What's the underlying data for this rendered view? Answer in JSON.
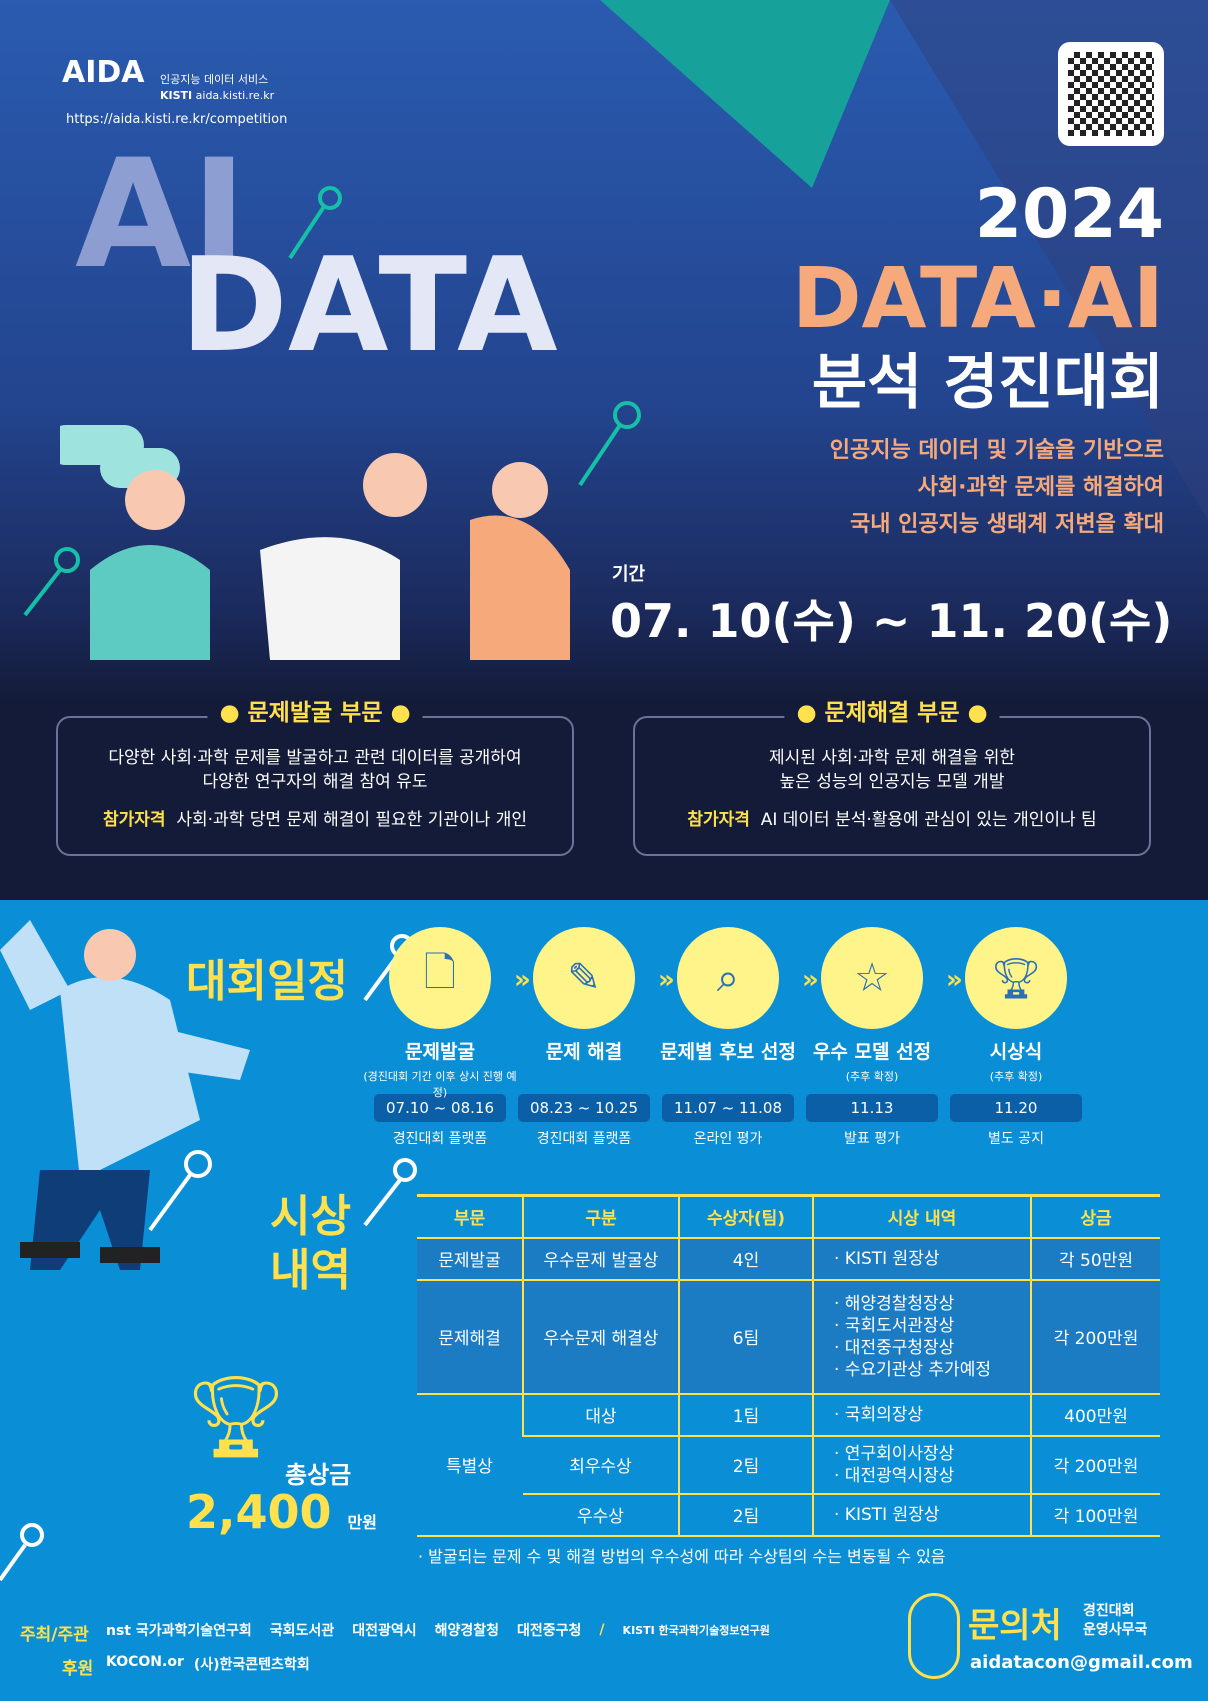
{
  "header": {
    "logo_text": "AIDA",
    "service": "인공지능 데이터 서비스",
    "kisti": "KISTI",
    "site": "aida.kisti.re.kr",
    "url": "https://aida.kisti.re.kr/competition",
    "qr_icon": "qr-code"
  },
  "hero": {
    "deco_ai": "AI",
    "deco_data": "DATA",
    "year": "2024",
    "title1": "DATA·AI",
    "title2": "분석 경진대회",
    "desc": [
      "인공지능 데이터 및 기술을 기반으로",
      "사회·과학 문제를 해결하여",
      "국내 인공지능 생태계 저변을 확대"
    ],
    "period_label": "기간",
    "period": "07. 10(수) ~ 11. 20(수)"
  },
  "categories": [
    {
      "title": "문제발굴 부문",
      "desc": [
        "다양한 사회·과학 문제를 발굴하고 관련 데이터를 공개하여",
        "다양한 연구자의 해결 참여 유도"
      ],
      "elig_label": "참가자격",
      "elig": "사회·과학 당면 문제 해결이 필요한 기관이나 개인"
    },
    {
      "title": "문제해결 부문",
      "desc": [
        "제시된 사회·과학 문제 해결을 위한",
        "높은 성능의 인공지능 모델 개발"
      ],
      "elig_label": "참가자격",
      "elig": "AI 데이터 분석·활용에 관심이 있는 개인이나 팀"
    }
  ],
  "schedule": {
    "title": "대회일정",
    "steps": [
      {
        "name": "문제발굴",
        "sub": "(경진대회 기간 이후 상시 진행 예정)",
        "date": "07.10 ~ 08.16",
        "place": "경진대회 플랫폼",
        "icon": "document-search"
      },
      {
        "name": "문제 해결",
        "sub": "",
        "date": "08.23 ~ 10.25",
        "place": "경진대회 플랫폼",
        "icon": "pencil-check"
      },
      {
        "name": "문제별 후보 선정",
        "sub": "",
        "date": "11.07 ~ 11.08",
        "place": "온라인 평가",
        "icon": "screen-search"
      },
      {
        "name": "우수 모델 선정",
        "sub": "(추후 확정)",
        "date": "11.13",
        "place": "발표 평가",
        "icon": "stars"
      },
      {
        "name": "시상식",
        "sub": "(추후 확정)",
        "date": "11.20",
        "place": "별도 공지",
        "icon": "trophy"
      }
    ]
  },
  "awards": {
    "title1": "시상",
    "title2": "내역",
    "total_label": "총상금",
    "total": "2,400",
    "total_unit": "만원",
    "headers": [
      "부문",
      "구분",
      "수상자(팀)",
      "시상 내역",
      "상금"
    ],
    "rows": [
      {
        "cat": "문제발굴",
        "type": "우수문제 발굴상",
        "count": "4인",
        "detail": [
          "· KISTI 원장상"
        ],
        "prize": "각 50만원"
      },
      {
        "cat": "문제해결",
        "type": "우수문제 해결상",
        "count": "6팀",
        "detail": [
          "· 해양경찰청장상",
          "· 국회도서관장상",
          "· 대전중구청장상",
          "· 수요기관상 추가예정"
        ],
        "prize": "각 200만원"
      },
      {
        "cat": "특별상",
        "type": "대상",
        "count": "1팀",
        "detail": [
          "· 국회의장상"
        ],
        "prize": "400만원"
      },
      {
        "cat": "",
        "type": "최우수상",
        "count": "2팀",
        "detail": [
          "· 연구회이사장상",
          "· 대전광역시장상"
        ],
        "prize": "각 200만원"
      },
      {
        "cat": "",
        "type": "우수상",
        "count": "2팀",
        "detail": [
          "· KISTI 원장상"
        ],
        "prize": "각 100만원"
      }
    ],
    "note": "· 발굴되는 문제 수 및 해결 방법의 우수성에 따라 수상팀의 수는 변동될 수 있음"
  },
  "footer": {
    "host_label": "주최/주관",
    "sponsor_label": "후원",
    "hosts": [
      "nst 국가과학기술연구회",
      "국회도서관",
      "대전광역시",
      "해양경찰청",
      "대전중구청",
      "/",
      "KISTI 한국과학기술정보연구원"
    ],
    "sponsors": [
      "KOCON.or",
      "(사)한국콘텐츠학회"
    ],
    "contact_label": "문의처",
    "contact_org1": "경진대회",
    "contact_org2": "운영사무국",
    "email": "aidatacon@gmail.com"
  },
  "colors": {
    "yellow": "#ffe14d",
    "peach": "#f6a97a",
    "teal": "#16a19a",
    "blue": "#0a8fd6",
    "navy": "#141b38"
  }
}
